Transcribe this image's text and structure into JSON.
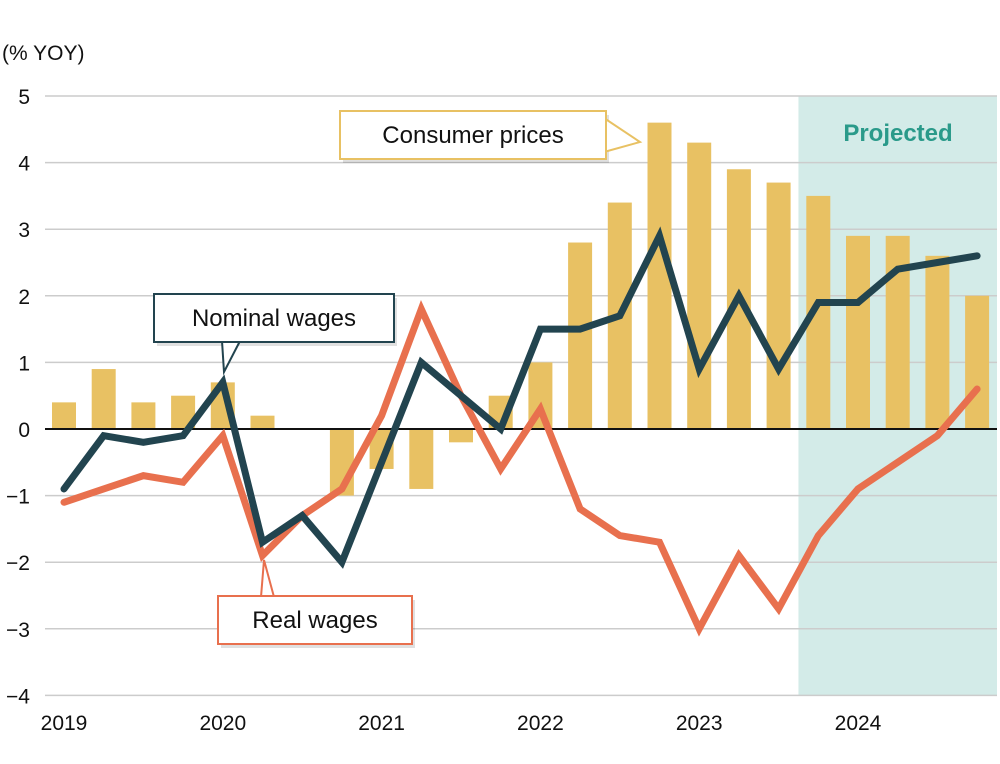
{
  "chart_data": {
    "type": "bar+line",
    "ylabel": "(% YOY)",
    "ylim": [
      -4,
      5
    ],
    "yticks": [
      "5",
      "4",
      "3",
      "2",
      "1",
      "0",
      "−1",
      "−2",
      "−3",
      "−4"
    ],
    "ytick_values": [
      5,
      4,
      3,
      2,
      1,
      0,
      -1,
      -2,
      -3,
      -4
    ],
    "xtick_labels": [
      "2019",
      "2020",
      "2021",
      "2022",
      "2023",
      "2024"
    ],
    "x_quarters": [
      "2019Q1",
      "2019Q2",
      "2019Q3",
      "2019Q4",
      "2020Q1",
      "2020Q2",
      "2020Q3",
      "2020Q4",
      "2021Q1",
      "2021Q2",
      "2021Q3",
      "2021Q4",
      "2022Q1",
      "2022Q2",
      "2022Q3",
      "2022Q4",
      "2023Q1",
      "2023Q2",
      "2023Q3",
      "2023Q4",
      "2024Q1",
      "2024Q2",
      "2024Q3",
      "2024Q4"
    ],
    "grid": true,
    "projected_label": "Projected",
    "projected_from": "2023Q4",
    "series": [
      {
        "name": "Consumer prices",
        "type": "bar",
        "color": "#e8c163",
        "values": [
          0.4,
          0.9,
          0.4,
          0.5,
          0.7,
          0.2,
          0.0,
          -1.0,
          -0.6,
          -0.9,
          -0.2,
          0.5,
          1.0,
          2.8,
          3.4,
          4.6,
          4.3,
          3.9,
          3.7,
          3.5,
          2.9,
          2.9,
          2.6,
          2.0
        ]
      },
      {
        "name": "Nominal wages",
        "type": "line",
        "color": "#22444f",
        "values": [
          -0.9,
          -0.1,
          -0.2,
          -0.1,
          0.7,
          -1.7,
          -1.3,
          -2.0,
          -0.5,
          1.0,
          0.5,
          0.0,
          1.5,
          1.5,
          1.7,
          2.9,
          0.9,
          2.0,
          0.9,
          1.9,
          1.9,
          2.4,
          2.5,
          2.6
        ]
      },
      {
        "name": "Real wages",
        "type": "line",
        "color": "#e8704e",
        "values": [
          -1.1,
          -0.9,
          -0.7,
          -0.8,
          -0.1,
          -1.9,
          -1.3,
          -0.9,
          0.2,
          1.8,
          0.5,
          -0.6,
          0.3,
          -1.2,
          -1.6,
          -1.7,
          -3.0,
          -1.9,
          -2.7,
          -1.6,
          -0.9,
          -0.5,
          -0.1,
          0.6
        ]
      }
    ],
    "colors": {
      "projection_bg": "#d3ebe8",
      "grid": "#cccccc",
      "zero_line": "#111111"
    }
  }
}
